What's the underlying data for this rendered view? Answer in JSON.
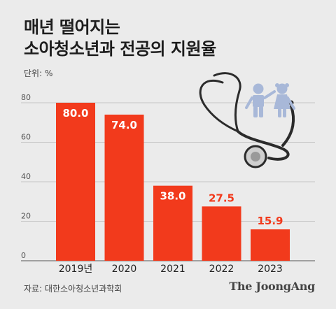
{
  "title_lines": [
    "매년 떨어지는",
    "소아청소년과 전공의 지원율"
  ],
  "unit_label": "단위: %",
  "source_label": "자료: 대한소아청소년과학회",
  "brand_label": "The JoongAng",
  "icons": [
    "stethoscope-icon",
    "children-icon"
  ],
  "colors": {
    "bar": "#f23a1c",
    "grid": "#b8b8b8",
    "label_inside": "#ffffff",
    "label_outside": "#f23a1c",
    "background": "#ebebeb"
  },
  "chart_data": {
    "type": "bar",
    "categories": [
      "2019년",
      "2020",
      "2021",
      "2022",
      "2023"
    ],
    "values": [
      80.0,
      74.0,
      38.0,
      27.5,
      15.9
    ],
    "value_labels": [
      "80.0",
      "74.0",
      "38.0",
      "27.5",
      "15.9"
    ],
    "yticks": [
      0,
      20,
      40,
      60,
      80
    ],
    "ylim": [
      0,
      80
    ],
    "grid": true
  }
}
